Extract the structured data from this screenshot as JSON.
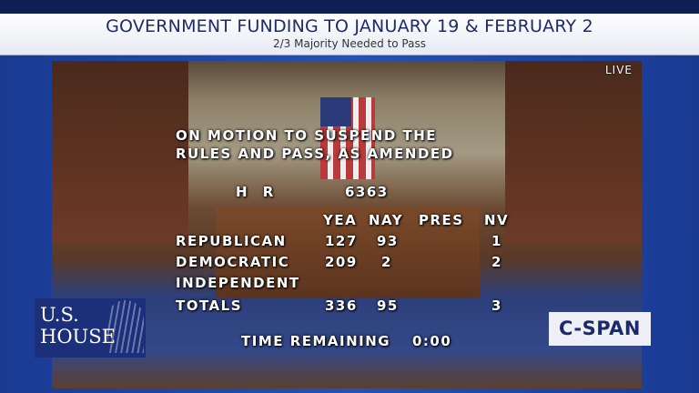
{
  "banner": {
    "title": "GOVERNMENT FUNDING TO JANUARY 19 & FEBRUARY 2",
    "subtitle": "2/3 Majority Needed to Pass"
  },
  "live_label": "LIVE",
  "vote": {
    "motion_line1": "ON MOTION TO SUSPEND THE",
    "motion_line2": "RULES AND PASS, AS AMENDED",
    "bill_prefix": "H R",
    "bill_number": "6363",
    "columns": [
      "YEA",
      "NAY",
      "PRES",
      "NV"
    ],
    "rows": [
      {
        "party": "REPUBLICAN",
        "yea": "127",
        "nay": "93",
        "pres": "",
        "nv": "1"
      },
      {
        "party": "DEMOCRATIC",
        "yea": "209",
        "nay": "2",
        "pres": "",
        "nv": "2"
      },
      {
        "party": "INDEPENDENT",
        "yea": "",
        "nay": "",
        "pres": "",
        "nv": ""
      },
      {
        "party": "TOTALS",
        "yea": "336",
        "nay": "95",
        "pres": "",
        "nv": "3"
      }
    ],
    "time_label": "TIME REMAINING",
    "time_value": "0:00"
  },
  "logos": {
    "house_line1": "U.S.",
    "house_line2": "HOUSE",
    "network": "C-SPAN"
  }
}
